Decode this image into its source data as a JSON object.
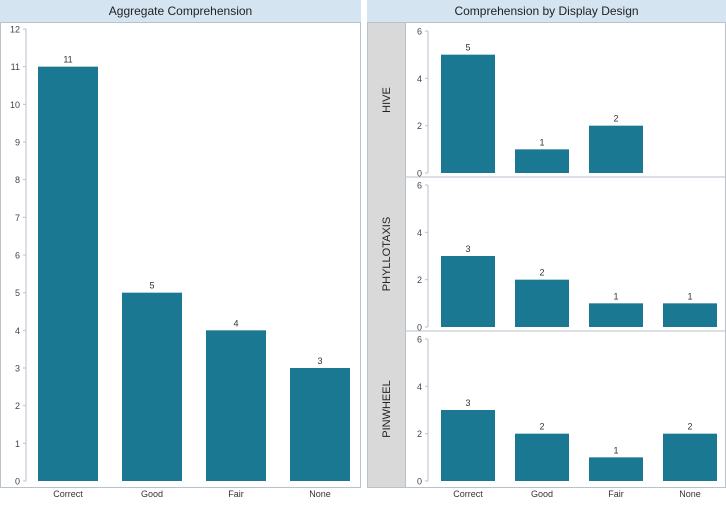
{
  "colors": {
    "bar": "#1b7893",
    "header_bg": "#d5e4f1",
    "row_label_bg": "#d9d9d9",
    "text": "#222222",
    "axis": "#b8c2cc"
  },
  "left_panel": {
    "title": "Aggregate Comprehension"
  },
  "right_panel": {
    "title": "Comprehension by Display Design"
  },
  "chart_data": [
    {
      "type": "bar",
      "title": "Aggregate Comprehension",
      "categories": [
        "Correct",
        "Good",
        "Fair",
        "None"
      ],
      "values": [
        11,
        5,
        4,
        3
      ],
      "ylim": [
        0,
        12
      ],
      "yticks": [
        0,
        1,
        2,
        3,
        4,
        5,
        6,
        7,
        8,
        9,
        10,
        11,
        12
      ],
      "data_labels": true,
      "grid": false
    },
    {
      "type": "bar",
      "title": "Comprehension by Display Design",
      "row": "HIVE",
      "categories": [
        "Correct",
        "Good",
        "Fair",
        "None"
      ],
      "values": [
        5,
        1,
        2,
        null
      ],
      "ylim": [
        0,
        6
      ],
      "yticks": [
        0,
        2,
        4,
        6
      ],
      "data_labels": true,
      "grid": false
    },
    {
      "type": "bar",
      "title": "Comprehension by Display Design",
      "row": "PHYLLOTAXIS",
      "categories": [
        "Correct",
        "Good",
        "Fair",
        "None"
      ],
      "values": [
        3,
        2,
        1,
        1
      ],
      "ylim": [
        0,
        6
      ],
      "yticks": [
        0,
        2,
        4,
        6
      ],
      "data_labels": true,
      "grid": false
    },
    {
      "type": "bar",
      "title": "Comprehension by Display Design",
      "row": "PINWHEEL",
      "categories": [
        "Correct",
        "Good",
        "Fair",
        "None"
      ],
      "values": [
        3,
        2,
        1,
        2
      ],
      "ylim": [
        0,
        6
      ],
      "yticks": [
        0,
        2,
        4,
        6
      ],
      "data_labels": true,
      "grid": false
    }
  ]
}
